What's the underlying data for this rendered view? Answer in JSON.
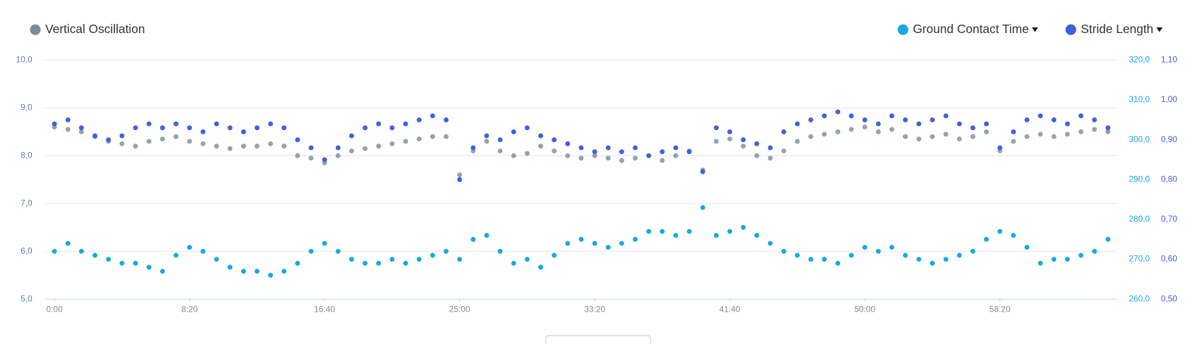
{
  "chart_data": {
    "type": "scatter",
    "x": [
      0,
      50,
      100,
      150,
      200,
      250,
      300,
      350,
      400,
      450,
      500,
      550,
      600,
      650,
      700,
      750,
      800,
      850,
      900,
      950,
      1000,
      1050,
      1100,
      1150,
      1200,
      1250,
      1300,
      1350,
      1400,
      1450,
      1500,
      1550,
      1600,
      1650,
      1700,
      1750,
      1800,
      1850,
      1900,
      1950,
      2000,
      2050,
      2100,
      2150,
      2200,
      2250,
      2300,
      2350,
      2400,
      2450,
      2500,
      2550,
      2600,
      2650,
      2700,
      2750,
      2800,
      2850,
      2900,
      2950,
      3000,
      3050,
      3100,
      3150,
      3200,
      3250,
      3300,
      3350,
      3400,
      3450,
      3500,
      3550,
      3600,
      3650,
      3700,
      3750,
      3800,
      3850,
      3900
    ],
    "xlim": [
      -34,
      3935
    ],
    "xticks": [
      {
        "value": 0,
        "label": "0:00"
      },
      {
        "value": 500,
        "label": "8:20"
      },
      {
        "value": 1000,
        "label": "16:40"
      },
      {
        "value": 1500,
        "label": "25:00"
      },
      {
        "value": 2000,
        "label": "33:20"
      },
      {
        "value": 2500,
        "label": "41:40"
      },
      {
        "value": 3000,
        "label": "50:00"
      },
      {
        "value": 3500,
        "label": "58:20"
      }
    ],
    "ylim": [
      5,
      10
    ],
    "yticks": [
      {
        "value": 5,
        "label": "5,0"
      },
      {
        "value": 6,
        "label": "6,0"
      },
      {
        "value": 7,
        "label": "7,0"
      },
      {
        "value": 8,
        "label": "8,0"
      },
      {
        "value": 9,
        "label": "9,0"
      },
      {
        "value": 10,
        "label": "10,0"
      }
    ],
    "y2lim": [
      260,
      320
    ],
    "y2ticks": [
      {
        "value": 260,
        "label": "260,0"
      },
      {
        "value": 270,
        "label": "270,0"
      },
      {
        "value": 280,
        "label": "280,0"
      },
      {
        "value": 290,
        "label": "290,0"
      },
      {
        "value": 300,
        "label": "300,0"
      },
      {
        "value": 310,
        "label": "310,0"
      },
      {
        "value": 320,
        "label": "320,0"
      }
    ],
    "y3lim": [
      0.5,
      1.1
    ],
    "y3ticks": [
      {
        "value": 0.5,
        "label": "0,50"
      },
      {
        "value": 0.6,
        "label": "0,60"
      },
      {
        "value": 0.7,
        "label": "0,70"
      },
      {
        "value": 0.8,
        "label": "0,80"
      },
      {
        "value": 0.9,
        "label": "0,90"
      },
      {
        "value": 1.0,
        "label": "1,00"
      },
      {
        "value": 1.1,
        "label": "1,10"
      }
    ],
    "grid": true,
    "series": [
      {
        "name": "Vertical Oscillation",
        "color": "#7b8c95",
        "axis": "y",
        "values": [
          8.6,
          8.55,
          8.5,
          8.4,
          8.3,
          8.25,
          8.2,
          8.3,
          8.35,
          8.4,
          8.3,
          8.25,
          8.2,
          8.15,
          8.2,
          8.2,
          8.25,
          8.2,
          8.0,
          7.95,
          7.85,
          8.0,
          8.1,
          8.15,
          8.2,
          8.25,
          8.3,
          8.35,
          8.4,
          8.4,
          7.6,
          8.1,
          8.3,
          8.1,
          8.0,
          8.05,
          8.2,
          8.1,
          8.0,
          7.95,
          8.0,
          7.95,
          7.9,
          7.95,
          8.0,
          7.9,
          8.0,
          8.1,
          7.7,
          8.3,
          8.35,
          8.2,
          8.0,
          7.95,
          8.1,
          8.3,
          8.4,
          8.45,
          8.5,
          8.55,
          8.6,
          8.5,
          8.55,
          8.4,
          8.35,
          8.4,
          8.45,
          8.35,
          8.4,
          8.5,
          8.1,
          8.3,
          8.4,
          8.45,
          8.4,
          8.45,
          8.5,
          8.55,
          8.5
        ]
      },
      {
        "name": "Ground Contact Time",
        "color": "#1aa7e4",
        "axis": "y2",
        "values": [
          272,
          274,
          272,
          271,
          270,
          269,
          269,
          268,
          267,
          271,
          273,
          272,
          270,
          268,
          267,
          267,
          266,
          267,
          269,
          272,
          274,
          272,
          270,
          269,
          269,
          270,
          269,
          270,
          271,
          272,
          270,
          275,
          276,
          272,
          269,
          270,
          268,
          271,
          274,
          275,
          274,
          273,
          274,
          275,
          277,
          277,
          276,
          277,
          283,
          276,
          277,
          278,
          276,
          274,
          272,
          271,
          270,
          270,
          269,
          271,
          273,
          272,
          273,
          271,
          270,
          269,
          270,
          271,
          272,
          275,
          277,
          276,
          273,
          269,
          270,
          270,
          271,
          272,
          275
        ]
      },
      {
        "name": "Stride Length",
        "color": "#4060dc",
        "axis": "y3",
        "values": [
          0.94,
          0.95,
          0.93,
          0.91,
          0.9,
          0.91,
          0.93,
          0.94,
          0.93,
          0.94,
          0.93,
          0.92,
          0.94,
          0.93,
          0.92,
          0.93,
          0.94,
          0.93,
          0.9,
          0.88,
          0.85,
          0.88,
          0.91,
          0.93,
          0.94,
          0.93,
          0.94,
          0.95,
          0.96,
          0.95,
          0.8,
          0.88,
          0.91,
          0.9,
          0.92,
          0.93,
          0.91,
          0.9,
          0.89,
          0.88,
          0.87,
          0.88,
          0.87,
          0.88,
          0.86,
          0.87,
          0.88,
          0.87,
          0.82,
          0.93,
          0.92,
          0.9,
          0.89,
          0.88,
          0.92,
          0.94,
          0.95,
          0.96,
          0.97,
          0.96,
          0.95,
          0.94,
          0.96,
          0.95,
          0.94,
          0.95,
          0.96,
          0.94,
          0.93,
          0.94,
          0.88,
          0.92,
          0.95,
          0.96,
          0.95,
          0.94,
          0.96,
          0.95,
          0.93
        ]
      }
    ]
  }
}
